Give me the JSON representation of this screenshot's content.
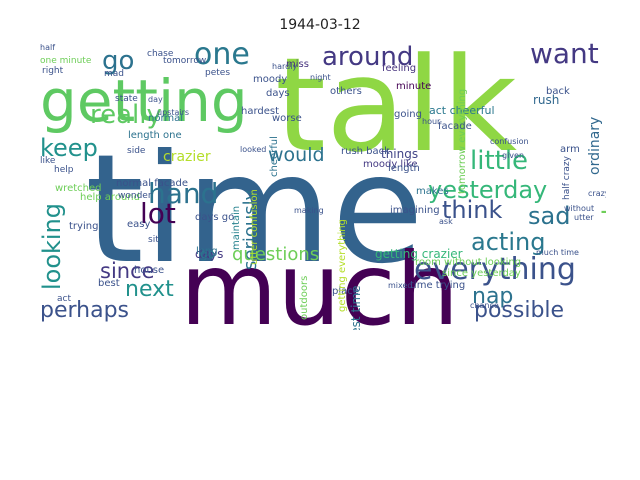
{
  "figure": {
    "title": "1944-03-12"
  },
  "wordcloud": {
    "colormap": "viridis",
    "words": [
      {
        "text": "time",
        "color": "#33638d"
      },
      {
        "text": "talk",
        "color": "#8fd744"
      },
      {
        "text": "much",
        "color": "#440154"
      },
      {
        "text": "getting",
        "color": "#5ec962"
      },
      {
        "text": "everything",
        "color": "#3b528b"
      },
      {
        "text": "around",
        "color": "#443983"
      },
      {
        "text": "go",
        "color": "#2c728e"
      },
      {
        "text": "want",
        "color": "#443983"
      },
      {
        "text": "one",
        "color": "#2a788e"
      },
      {
        "text": "really",
        "color": "#5ec962"
      },
      {
        "text": "keep",
        "color": "#21918c"
      },
      {
        "text": "hand",
        "color": "#2c728e"
      },
      {
        "text": "lot",
        "color": "#440154"
      },
      {
        "text": "little",
        "color": "#35b779"
      },
      {
        "text": "yesterday",
        "color": "#35b779"
      },
      {
        "text": "think",
        "color": "#3b528b"
      },
      {
        "text": "sad",
        "color": "#2c728e"
      },
      {
        "text": "alone",
        "color": "#6ece58"
      },
      {
        "text": "acting",
        "color": "#2a788e"
      },
      {
        "text": "looking",
        "color": "#21918c"
      },
      {
        "text": "since",
        "color": "#443983"
      },
      {
        "text": "next",
        "color": "#21918c"
      },
      {
        "text": "perhaps",
        "color": "#3b528b"
      },
      {
        "text": "nap",
        "color": "#2c728e"
      },
      {
        "text": "possible",
        "color": "#3b528b"
      },
      {
        "text": "seriously",
        "color": "#2c728e"
      },
      {
        "text": "would",
        "color": "#2c728e"
      },
      {
        "text": "questions",
        "color": "#6ece58"
      },
      {
        "text": "crazier",
        "color": "#b5de2b"
      },
      {
        "text": "ordinary",
        "color": "#31688e"
      },
      {
        "text": "days",
        "color": "#443983"
      },
      {
        "text": "go",
        "color": "#2a788e"
      },
      {
        "text": "getting crazier",
        "color": "#35b779"
      },
      {
        "text": "things",
        "color": "#414487"
      },
      {
        "text": "moody",
        "color": "#3b528b"
      },
      {
        "text": "feeling",
        "color": "#46327e"
      },
      {
        "text": "miss",
        "color": "#46327e"
      },
      {
        "text": "minute",
        "color": "#440154"
      },
      {
        "text": "days",
        "color": "#3b528b"
      },
      {
        "text": "others",
        "color": "#3b528b"
      },
      {
        "text": "hardest",
        "color": "#3b528b"
      },
      {
        "text": "worse",
        "color": "#3b528b"
      },
      {
        "text": "rush back",
        "color": "#3b528b"
      },
      {
        "text": "cheerful",
        "color": "#2c728e"
      },
      {
        "text": "maintain",
        "color": "#26828e"
      },
      {
        "text": "utter confusion",
        "color": "#b5de2b"
      },
      {
        "text": "hardest time",
        "color": "#2c728e"
      },
      {
        "text": "place",
        "color": "#3b528b"
      },
      {
        "text": "outdoors",
        "color": "#6ece58"
      },
      {
        "text": "getting everything",
        "color": "#b5de2b"
      },
      {
        "text": "moody like",
        "color": "#443983"
      },
      {
        "text": "imagining",
        "color": "#3b528b"
      },
      {
        "text": "makes",
        "color": "#2c728e"
      },
      {
        "text": "length",
        "color": "#3b528b"
      },
      {
        "text": "going",
        "color": "#3b528b"
      },
      {
        "text": "act cheerful",
        "color": "#2a788e"
      },
      {
        "text": "tomorrow everything",
        "color": "#6ece58"
      },
      {
        "text": "rush",
        "color": "#31688e"
      },
      {
        "text": "back",
        "color": "#3b528b"
      },
      {
        "text": "room without looking",
        "color": "#6ece58"
      },
      {
        "text": "since yesterday",
        "color": "#6ece58"
      },
      {
        "text": "time trying",
        "color": "#3b528b"
      },
      {
        "text": "arm",
        "color": "#3b528b"
      },
      {
        "text": "help around",
        "color": "#6ece58"
      },
      {
        "text": "normal facade",
        "color": "#3b528b"
      },
      {
        "text": "length one",
        "color": "#2c728e"
      },
      {
        "text": "normal",
        "color": "#2c728e"
      },
      {
        "text": "easy",
        "color": "#3b528b"
      },
      {
        "text": "days go",
        "color": "#3b528b"
      },
      {
        "text": "long",
        "color": "#2c728e"
      },
      {
        "text": "house",
        "color": "#3b528b"
      },
      {
        "text": "best",
        "color": "#3b528b"
      },
      {
        "text": "trying",
        "color": "#3b528b"
      },
      {
        "text": "wretched",
        "color": "#6ece58"
      },
      {
        "text": "mad",
        "color": "#3b528b"
      },
      {
        "text": "right",
        "color": "#3b528b"
      },
      {
        "text": "one minute",
        "color": "#6ece58"
      },
      {
        "text": "tomorrow",
        "color": "#3b528b"
      },
      {
        "text": "chase",
        "color": "#3b528b"
      },
      {
        "text": "petes",
        "color": "#3b528b"
      },
      {
        "text": "state",
        "color": "#3b528b"
      },
      {
        "text": "upstairs",
        "color": "#3b528b"
      },
      {
        "text": "facade",
        "color": "#3b528b"
      },
      {
        "text": "half crazy",
        "color": "#3b528b"
      },
      {
        "text": "side",
        "color": "#3b528b"
      },
      {
        "text": "sit",
        "color": "#3b528b"
      },
      {
        "text": "like",
        "color": "#3b528b"
      },
      {
        "text": "help",
        "color": "#3b528b"
      },
      {
        "text": "act",
        "color": "#3b528b"
      },
      {
        "text": "wonder",
        "color": "#3b528b"
      },
      {
        "text": "looked",
        "color": "#3b528b"
      },
      {
        "text": "hour",
        "color": "#3b528b"
      },
      {
        "text": "chance",
        "color": "#3b528b"
      },
      {
        "text": "much time",
        "color": "#3b528b"
      },
      {
        "text": "mixed",
        "color": "#3b528b"
      },
      {
        "text": "making",
        "color": "#3b528b"
      },
      {
        "text": "confusion",
        "color": "#3b528b"
      },
      {
        "text": "given",
        "color": "#3b528b"
      },
      {
        "text": "ask",
        "color": "#3b528b"
      },
      {
        "text": "without",
        "color": "#3b528b"
      },
      {
        "text": "half",
        "color": "#3b528b"
      },
      {
        "text": "night",
        "color": "#3b528b"
      },
      {
        "text": "hardly",
        "color": "#3b528b"
      },
      {
        "text": "day",
        "color": "#3b528b"
      },
      {
        "text": "crazy",
        "color": "#3b528b"
      },
      {
        "text": "utter",
        "color": "#3b528b"
      }
    ]
  }
}
